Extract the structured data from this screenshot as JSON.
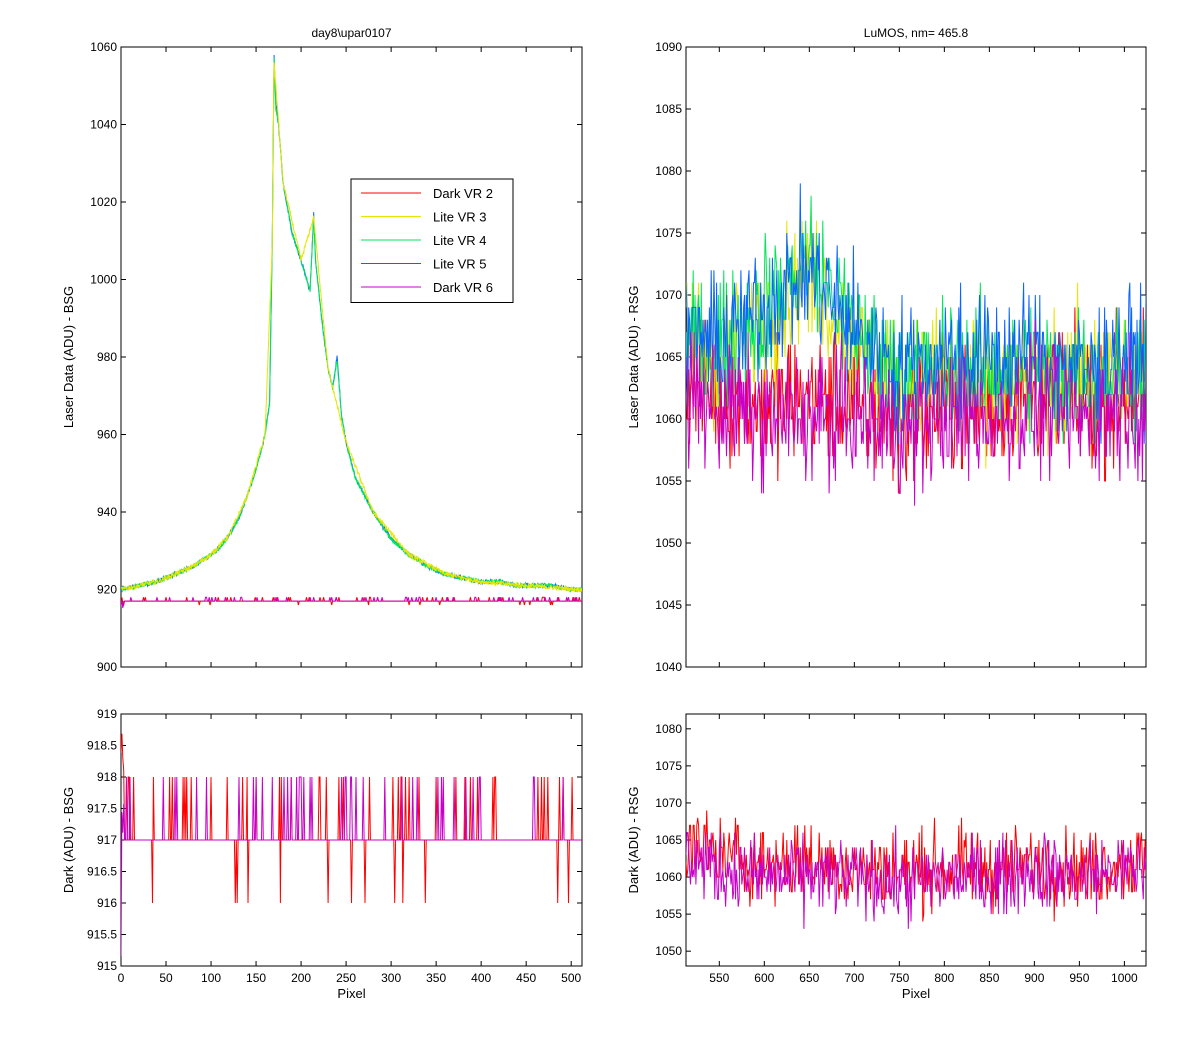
{
  "series_colors": {
    "Dark VR 2": "#ff0000",
    "Lite VR 3": "#e6e600",
    "Lite VR 4": "#00e65a",
    "Lite VR 5": "#0a64ff",
    "Dark VR 6": "#c800c8"
  },
  "chart_data": [
    {
      "id": "top-left",
      "type": "line",
      "title": "day8\\upar0107",
      "xlabel": "",
      "ylabel": "Laser Data (ADU) - BSG",
      "xlim": [
        0,
        512
      ],
      "ylim": [
        900,
        1060
      ],
      "xticks": [
        0,
        50,
        100,
        150,
        200,
        250,
        300,
        350,
        400,
        450,
        500
      ],
      "yticks": [
        900,
        920,
        940,
        960,
        980,
        1000,
        1020,
        1040,
        1060
      ],
      "show_x_tick_labels": false,
      "legend": {
        "placement": "upper-right",
        "entries": [
          "Dark VR 2",
          "Lite VR 3",
          "Lite VR 4",
          "Lite VR 5",
          "Dark VR 6"
        ]
      },
      "series": [
        {
          "name": "Lite VR 5",
          "x": [
            0,
            20,
            40,
            60,
            80,
            100,
            110,
            120,
            130,
            140,
            150,
            160,
            165,
            168,
            170,
            172,
            175,
            180,
            190,
            200,
            210,
            214,
            216,
            220,
            225,
            230,
            235,
            240,
            245,
            250,
            260,
            280,
            300,
            320,
            340,
            360,
            380,
            400,
            420,
            440,
            460,
            480,
            500,
            512
          ],
          "y": [
            920,
            921,
            922,
            924,
            926,
            929,
            931,
            934,
            938,
            944,
            951,
            960,
            968,
            1010,
            1058,
            1045,
            1040,
            1025,
            1012,
            1005,
            997,
            1017,
            1005,
            996,
            986,
            977,
            972,
            980,
            965,
            958,
            949,
            940,
            933,
            929,
            926,
            924,
            923,
            922,
            922,
            921,
            921,
            921,
            920,
            920
          ]
        },
        {
          "name": "Lite VR 4",
          "x": [
            0,
            20,
            40,
            60,
            80,
            100,
            110,
            120,
            130,
            140,
            150,
            160,
            165,
            168,
            170,
            172,
            175,
            180,
            190,
            200,
            210,
            214,
            216,
            220,
            225,
            230,
            235,
            240,
            245,
            250,
            260,
            280,
            300,
            320,
            340,
            360,
            380,
            400,
            420,
            440,
            460,
            480,
            500,
            512
          ],
          "y": [
            920,
            921,
            922,
            924,
            926,
            929,
            931,
            934,
            938,
            944,
            951,
            960,
            968,
            1010,
            1057,
            1044,
            1040,
            1025,
            1012,
            1005,
            997,
            1016,
            1005,
            996,
            986,
            977,
            972,
            979,
            965,
            958,
            949,
            940,
            933,
            929,
            926,
            924,
            923,
            922,
            922,
            921,
            921,
            921,
            920,
            920
          ]
        },
        {
          "name": "Lite VR 3",
          "x": [
            0,
            20,
            40,
            60,
            80,
            100,
            120,
            140,
            160,
            168,
            170,
            180,
            200,
            214,
            230,
            250,
            280,
            320,
            360,
            400,
            450,
            512
          ],
          "y": [
            920,
            921,
            922,
            924,
            926,
            929,
            934,
            944,
            960,
            1009,
            1056,
            1025,
            1005,
            1016,
            977,
            958,
            940,
            929,
            924,
            922,
            921,
            920
          ]
        },
        {
          "name": "Dark VR 2",
          "x": [
            0,
            512
          ],
          "y": [
            917,
            917
          ]
        },
        {
          "name": "Dark VR 6",
          "x": [
            0,
            512
          ],
          "y": [
            917,
            917
          ]
        }
      ]
    },
    {
      "id": "top-right",
      "type": "line",
      "title": "LuMOS, nm= 465.8",
      "xlabel": "",
      "ylabel": "Laser Data (ADU) - RSG",
      "xlim": [
        513,
        1024
      ],
      "ylim": [
        1040,
        1090
      ],
      "xticks": [
        550,
        600,
        650,
        700,
        750,
        800,
        850,
        900,
        950,
        1000
      ],
      "yticks": [
        1040,
        1045,
        1050,
        1055,
        1060,
        1065,
        1070,
        1075,
        1080,
        1085,
        1090
      ],
      "show_x_tick_labels": false,
      "series": [
        {
          "name": "Dark VR 2",
          "x": [
            513,
            550,
            600,
            650,
            700,
            750,
            800,
            850,
            900,
            950,
            1000,
            1024
          ],
          "y": [
            1063,
            1062,
            1061,
            1062,
            1061,
            1060,
            1061,
            1061,
            1062,
            1061,
            1062,
            1062
          ]
        },
        {
          "name": "Lite VR 3",
          "x": [
            513,
            550,
            600,
            650,
            700,
            750,
            800,
            850,
            900,
            950,
            1000,
            1024
          ],
          "y": [
            1066,
            1065,
            1068,
            1072,
            1066,
            1063,
            1064,
            1063,
            1063,
            1063,
            1064,
            1064
          ]
        },
        {
          "name": "Lite VR 4",
          "x": [
            513,
            550,
            600,
            650,
            700,
            750,
            800,
            850,
            900,
            950,
            1000,
            1024
          ],
          "y": [
            1066,
            1066,
            1069,
            1073,
            1067,
            1064,
            1064,
            1064,
            1064,
            1064,
            1064,
            1064
          ]
        },
        {
          "name": "Lite VR 5",
          "x": [
            513,
            550,
            600,
            650,
            700,
            750,
            800,
            850,
            900,
            950,
            1000,
            1024
          ],
          "y": [
            1067,
            1066,
            1069,
            1072,
            1067,
            1064,
            1065,
            1065,
            1065,
            1064,
            1065,
            1065
          ]
        },
        {
          "name": "Dark VR 6",
          "x": [
            513,
            550,
            600,
            650,
            700,
            750,
            800,
            850,
            900,
            950,
            1000,
            1024
          ],
          "y": [
            1062,
            1061,
            1060,
            1060,
            1060,
            1059,
            1060,
            1060,
            1061,
            1060,
            1061,
            1061
          ]
        }
      ]
    },
    {
      "id": "bottom-left",
      "type": "line",
      "title": "",
      "xlabel": "Pixel",
      "ylabel": "Dark (ADU) - BSG",
      "xlim": [
        0,
        512
      ],
      "ylim": [
        915,
        919
      ],
      "xticks": [
        0,
        50,
        100,
        150,
        200,
        250,
        300,
        350,
        400,
        450,
        500
      ],
      "yticks": [
        915,
        915.5,
        916,
        916.5,
        917,
        917.5,
        918,
        918.5,
        919
      ],
      "show_x_tick_labels": true,
      "series": [
        {
          "name": "Dark VR 2",
          "x": [
            0,
            512
          ],
          "y": [
            917,
            917
          ]
        },
        {
          "name": "Dark VR 6",
          "x": [
            0,
            512
          ],
          "y": [
            917,
            917
          ]
        }
      ]
    },
    {
      "id": "bottom-right",
      "type": "line",
      "title": "",
      "xlabel": "Pixel",
      "ylabel": "Dark (ADU) - RSG",
      "xlim": [
        513,
        1024
      ],
      "ylim": [
        1048,
        1082
      ],
      "xticks": [
        550,
        600,
        650,
        700,
        750,
        800,
        850,
        900,
        950,
        1000
      ],
      "yticks": [
        1050,
        1055,
        1060,
        1065,
        1070,
        1075,
        1080
      ],
      "show_x_tick_labels": true,
      "series": [
        {
          "name": "Dark VR 2",
          "x": [
            513,
            550,
            600,
            650,
            700,
            750,
            800,
            850,
            900,
            950,
            1000,
            1024
          ],
          "y": [
            1064,
            1063,
            1062,
            1062,
            1061,
            1061,
            1061,
            1061,
            1062,
            1061,
            1062,
            1062
          ]
        },
        {
          "name": "Dark VR 6",
          "x": [
            513,
            550,
            600,
            650,
            700,
            750,
            800,
            850,
            900,
            950,
            1000,
            1024
          ],
          "y": [
            1063,
            1061,
            1060,
            1060,
            1060,
            1059,
            1060,
            1060,
            1061,
            1060,
            1061,
            1061
          ]
        }
      ]
    }
  ]
}
